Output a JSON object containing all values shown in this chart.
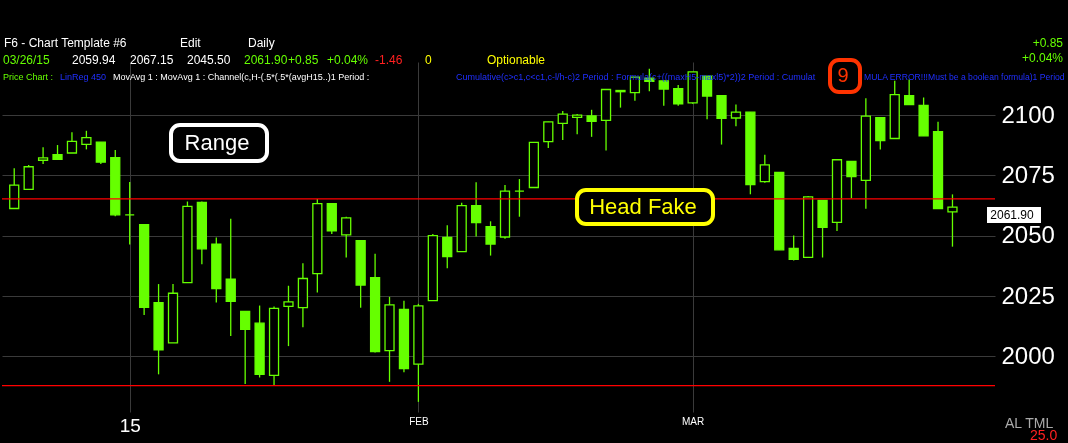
{
  "chart_data": {
    "type": "candlestick",
    "color": "#66ff00",
    "categories": [
      null,
      null,
      null,
      null,
      null,
      null,
      null,
      null,
      "15",
      null,
      null,
      null,
      null,
      null,
      null,
      null,
      null,
      null,
      null,
      null,
      null,
      null,
      null,
      null,
      null,
      null,
      null,
      null,
      "FEB",
      null,
      null,
      null,
      null,
      null,
      null,
      null,
      null,
      null,
      null,
      null,
      null,
      null,
      null,
      null,
      null,
      null,
      null,
      "MAR",
      null,
      null,
      null,
      null,
      null,
      null,
      null,
      null,
      null,
      null,
      null,
      null,
      null,
      null,
      null,
      null,
      null,
      null
    ],
    "ohlc": [
      [
        2061.3,
        2078.0,
        2061.3,
        2071.0
      ],
      [
        2069.2,
        2079.3,
        2069.2,
        2078.6
      ],
      [
        2081.3,
        2086.7,
        2079.7,
        2082.3
      ],
      [
        2083.6,
        2087.6,
        2081.7,
        2081.7
      ],
      [
        2084.3,
        2092.9,
        2084.3,
        2089.1
      ],
      [
        2087.9,
        2093.5,
        2085.8,
        2090.7
      ],
      [
        2088.8,
        2088.8,
        2079.7,
        2080.5
      ],
      [
        2082.4,
        2085.5,
        2058.1,
        2058.7
      ],
      [
        2058.7,
        2072.3,
        2046.4,
        2058.7
      ],
      [
        2054.6,
        2054.6,
        2017.2,
        2020.4
      ],
      [
        2022.3,
        2030.0,
        1992.6,
        2002.7
      ],
      [
        2005.6,
        2030.0,
        2005.6,
        2026.2
      ],
      [
        2030.6,
        2064.2,
        2030.6,
        2062.2
      ],
      [
        2063.8,
        2064.2,
        2038.2,
        2044.6
      ],
      [
        2046.5,
        2049.3,
        2022.4,
        2028.1
      ],
      [
        2032.0,
        2057.1,
        2008.5,
        2022.8
      ],
      [
        2018.7,
        2018.7,
        1988.6,
        2011.2
      ],
      [
        2013.8,
        2021.1,
        1991.3,
        1992.6
      ],
      [
        1992.2,
        2020.7,
        1988.2,
        2019.9
      ],
      [
        2020.8,
        2029.3,
        2004.3,
        2022.6
      ],
      [
        2020.2,
        2038.6,
        2012.1,
        2032.3
      ],
      [
        2034.3,
        2065.2,
        2026.5,
        2063.3
      ],
      [
        2063.3,
        2063.3,
        2050.7,
        2052.0
      ],
      [
        2050.4,
        2057.9,
        2041.0,
        2057.4
      ],
      [
        2048.0,
        2048.0,
        2020.2,
        2029.6
      ],
      [
        2032.7,
        2042.6,
        2001.6,
        2002.0
      ],
      [
        2002.4,
        2024.7,
        1989.5,
        2021.4
      ],
      [
        2019.5,
        2023.1,
        1993.5,
        1995.0
      ],
      [
        1996.8,
        2021.8,
        1981.2,
        2021.0
      ],
      [
        2023.1,
        2050.7,
        2023.1,
        2050.1
      ],
      [
        2049.3,
        2054.4,
        2036.6,
        2041.4
      ],
      [
        2043.4,
        2063.7,
        2043.4,
        2062.5
      ],
      [
        2062.5,
        2072.2,
        2049.7,
        2055.5
      ],
      [
        2053.8,
        2056.0,
        2041.8,
        2046.6
      ],
      [
        2049.5,
        2071.0,
        2048.8,
        2068.5
      ],
      [
        2068.5,
        2073.5,
        2057.9,
        2068.5
      ],
      [
        2070.0,
        2088.7,
        2070.0,
        2088.7
      ],
      [
        2089.0,
        2097.2,
        2086.4,
        2097.2
      ],
      [
        2096.6,
        2101.7,
        2089.7,
        2100.4
      ],
      [
        2099.1,
        2100.5,
        2092.1,
        2100.0
      ],
      [
        2099.7,
        2102.2,
        2091.0,
        2097.4
      ],
      [
        2097.8,
        2110.6,
        2085.3,
        2110.6
      ],
      [
        2110.2,
        2110.2,
        2103.1,
        2109.7
      ],
      [
        2109.3,
        2115.7,
        2105.9,
        2115.7
      ],
      [
        2115.3,
        2119.2,
        2109.9,
        2114.0
      ],
      [
        2114.2,
        2114.2,
        2103.9,
        2110.8
      ],
      [
        2111.0,
        2112.5,
        2103.9,
        2104.7
      ],
      [
        2105.1,
        2117.9,
        2104.7,
        2117.9
      ],
      [
        2116.1,
        2116.1,
        2098.3,
        2107.9
      ],
      [
        2108.1,
        2108.1,
        2087.8,
        2098.7
      ],
      [
        2098.8,
        2104.4,
        2095.4,
        2101.2
      ],
      [
        2101.2,
        2101.2,
        2067.2,
        2071.2
      ],
      [
        2072.4,
        2083.6,
        2072.0,
        2079.4
      ],
      [
        2076.3,
        2076.3,
        2044.2,
        2044.2
      ],
      [
        2044.8,
        2050.1,
        2039.8,
        2040.2
      ],
      [
        2041.1,
        2066.5,
        2041.1,
        2066.1
      ],
      [
        2064.7,
        2064.7,
        2041.0,
        2053.5
      ],
      [
        2055.6,
        2081.5,
        2052.0,
        2081.5
      ],
      [
        2080.8,
        2080.8,
        2065.5,
        2074.5
      ],
      [
        2073.0,
        2107.0,
        2061.2,
        2099.6
      ],
      [
        2098.9,
        2098.9,
        2085.8,
        2089.4
      ],
      [
        2090.3,
        2114.2,
        2090.3,
        2108.5
      ],
      [
        2108.1,
        2114.7,
        2104.4,
        2104.4
      ],
      [
        2104.0,
        2107.3,
        2091.4,
        2091.4
      ],
      [
        2093.1,
        2097.2,
        2061.3,
        2061.3
      ],
      [
        2059.94,
        2067.15,
        2045.5,
        2061.9
      ]
    ],
    "ylim": [
      1977,
      2122
    ],
    "yticks": [
      2000,
      2025,
      2050,
      2075,
      2100
    ],
    "grid": true,
    "ref_lines": [
      {
        "axis": "y",
        "value": 2065.3,
        "color": "#ff0000"
      },
      {
        "axis": "y",
        "value": 1987.9,
        "color": "#ff0000"
      }
    ],
    "annotations": [
      "Range",
      "Head Fake",
      "9",
      "F6 - Chart Template #6",
      "Edit",
      "Daily",
      "03/26/15",
      "2059.94",
      "2067.15",
      "2045.50",
      "2061.90",
      "+0.85",
      "+0.04%",
      "-1.46",
      "0",
      "Optionable",
      "+0.85",
      "+0.04%",
      "Price Chart :",
      "LinReg 450",
      "MovAvg 1 : MovAvg 1 : Channel(c,H-(.5*(.5*(avgH15..)1 Period :",
      "Cumulative(c>c1,c<c1,c-l/h-c)2 Period : Formula(c+((maxH5-maxl5)*2))2 Period : Cumulat",
      "MULA ERROR!!!Must be a boolean formula)1 Period",
      "2061.90",
      "AL TML",
      "25.0"
    ]
  }
}
